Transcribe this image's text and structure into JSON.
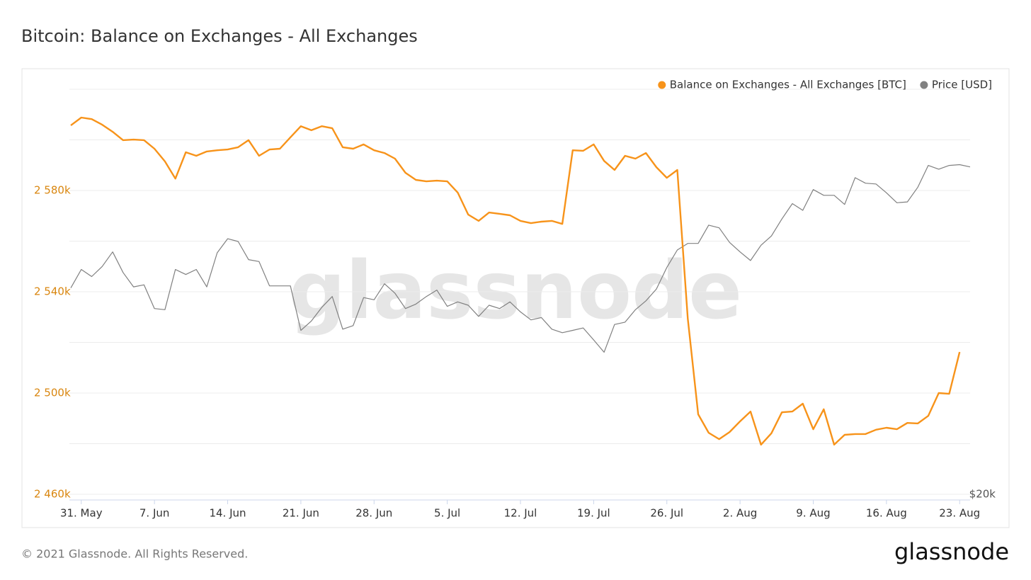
{
  "chart_data": {
    "type": "line",
    "title": "Bitcoin: Balance on Exchanges - All Exchanges",
    "watermark": "glassnode",
    "footer": {
      "copyright": "© 2021 Glassnode. All Rights Reserved.",
      "logo": "glassnode"
    },
    "x": [
      "30. May",
      "31. May",
      "1. Jun",
      "2. Jun",
      "3. Jun",
      "4. Jun",
      "5. Jun",
      "6. Jun",
      "7. Jun",
      "8. Jun",
      "9. Jun",
      "10. Jun",
      "11. Jun",
      "12. Jun",
      "13. Jun",
      "14. Jun",
      "15. Jun",
      "16. Jun",
      "17. Jun",
      "18. Jun",
      "19. Jun",
      "20. Jun",
      "21. Jun",
      "22. Jun",
      "23. Jun",
      "24. Jun",
      "25. Jun",
      "26. Jun",
      "27. Jun",
      "28. Jun",
      "29. Jun",
      "30. Jun",
      "1. Jul",
      "2. Jul",
      "3. Jul",
      "4. Jul",
      "5. Jul",
      "6. Jul",
      "7. Jul",
      "8. Jul",
      "9. Jul",
      "10. Jul",
      "11. Jul",
      "12. Jul",
      "13. Jul",
      "14. Jul",
      "15. Jul",
      "16. Jul",
      "17. Jul",
      "18. Jul",
      "19. Jul",
      "20. Jul",
      "21. Jul",
      "22. Jul",
      "23. Jul",
      "24. Jul",
      "25. Jul",
      "26. Jul",
      "27. Jul",
      "28. Jul",
      "29. Jul",
      "30. Jul",
      "31. Jul",
      "1. Aug",
      "2. Aug",
      "3. Aug",
      "4. Aug",
      "5. Aug",
      "6. Aug",
      "7. Aug",
      "8. Aug",
      "9. Aug",
      "10. Aug",
      "11. Aug",
      "12. Aug",
      "13. Aug",
      "14. Aug",
      "15. Aug",
      "16. Aug",
      "17. Aug",
      "18. Aug",
      "19. Aug",
      "20. Aug",
      "21. Aug",
      "22. Aug",
      "23. Aug",
      "24. Aug"
    ],
    "xticks": [
      "31. May",
      "7. Jun",
      "14. Jun",
      "21. Jun",
      "28. Jun",
      "5. Jul",
      "12. Jul",
      "19. Jul",
      "26. Jul",
      "2. Aug",
      "9. Aug",
      "16. Aug",
      "23. Aug"
    ],
    "ylim": [
      2460000,
      2620000
    ],
    "yticks": [
      {
        "value": 2460000,
        "label": "2 460k"
      },
      {
        "value": 2500000,
        "label": "2 500k"
      },
      {
        "value": 2540000,
        "label": "2 540k"
      },
      {
        "value": 2580000,
        "label": "2 580k"
      }
    ],
    "minor_yticks": [
      2480000,
      2520000,
      2560000,
      2600000,
      2620000
    ],
    "y2lim": [
      20000,
      60000
    ],
    "y2scale": "log",
    "y2ticks": [
      {
        "value": 20000,
        "label": "$20k"
      }
    ],
    "grid": true,
    "legend": "top-right",
    "series": [
      {
        "name": "Balance on Exchanges - All Exchanges [BTC]",
        "color": "#f7931a",
        "axis": "y",
        "values": [
          2605700,
          2608800,
          2608200,
          2606000,
          2603200,
          2599900,
          2600100,
          2599900,
          2596500,
          2591500,
          2584700,
          2595100,
          2593700,
          2595400,
          2595900,
          2596200,
          2597100,
          2599900,
          2593700,
          2596200,
          2596500,
          2601000,
          2605400,
          2603800,
          2605400,
          2604600,
          2597100,
          2596500,
          2598200,
          2595900,
          2594800,
          2592600,
          2587000,
          2584200,
          2583600,
          2583900,
          2583600,
          2579200,
          2570500,
          2568000,
          2571300,
          2570800,
          2570200,
          2568000,
          2567100,
          2567700,
          2568000,
          2566800,
          2595900,
          2595700,
          2598200,
          2591700,
          2588100,
          2593700,
          2592600,
          2594800,
          2589200,
          2585000,
          2588100,
          2529400,
          2491600,
          2484300,
          2481800,
          2484600,
          2488800,
          2492700,
          2479600,
          2484100,
          2492400,
          2492700,
          2495800,
          2485700,
          2493600,
          2479600,
          2483500,
          2483800,
          2483800,
          2485500,
          2486300,
          2485700,
          2488200,
          2488000,
          2491000,
          2500000,
          2499700,
          2516200,
          null
        ]
      },
      {
        "name": "Price [USD]",
        "color": "#808080",
        "axis": "y2",
        "values": [
          35000,
          36800,
          36100,
          37100,
          38600,
          36500,
          35100,
          35300,
          33100,
          33000,
          36800,
          36300,
          36800,
          35100,
          38500,
          40000,
          39700,
          37800,
          37600,
          35200,
          35200,
          35200,
          31200,
          32000,
          33200,
          34200,
          31300,
          31600,
          34100,
          33900,
          35400,
          34500,
          33100,
          33500,
          34200,
          34800,
          33300,
          33700,
          33400,
          32400,
          33400,
          33100,
          33700,
          32800,
          32100,
          32300,
          31300,
          31000,
          31200,
          31400,
          30400,
          29400,
          31700,
          31900,
          33000,
          33800,
          34900,
          37000,
          38800,
          39500,
          39500,
          41500,
          41200,
          39600,
          38600,
          37700,
          39300,
          40300,
          42200,
          44000,
          43200,
          45700,
          45000,
          45000,
          43900,
          47200,
          46500,
          46400,
          45300,
          44100,
          44200,
          46000,
          48800,
          48300,
          48800,
          48900,
          48600
        ]
      }
    ]
  }
}
